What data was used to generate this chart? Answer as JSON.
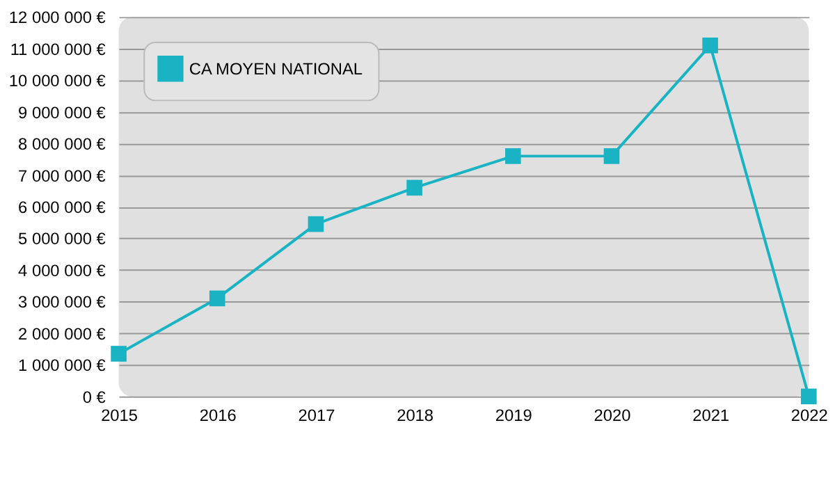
{
  "chart_data": {
    "type": "line",
    "categories": [
      "2015",
      "2016",
      "2017",
      "2018",
      "2019",
      "2020",
      "2021",
      "2022"
    ],
    "series": [
      {
        "name": "CA MOYEN NATIONAL",
        "color": "#1ab3c4",
        "values": [
          1350000,
          3100000,
          5450000,
          6600000,
          7600000,
          7600000,
          11100000,
          0
        ]
      }
    ],
    "ylim": [
      0,
      12000000
    ],
    "yticks": [
      {
        "value": 0,
        "label": "0 €"
      },
      {
        "value": 1000000,
        "label": "1 000 000 €"
      },
      {
        "value": 2000000,
        "label": "2 000 000 €"
      },
      {
        "value": 3000000,
        "label": "3 000 000 €"
      },
      {
        "value": 4000000,
        "label": "4 000 000 €"
      },
      {
        "value": 5000000,
        "label": "5 000 000 €"
      },
      {
        "value": 6000000,
        "label": "6 000 000 €"
      },
      {
        "value": 7000000,
        "label": "7 000 000 €"
      },
      {
        "value": 8000000,
        "label": "8 000 000 €"
      },
      {
        "value": 9000000,
        "label": "9 000 000 €"
      },
      {
        "value": 10000000,
        "label": "10 000 000 €"
      },
      {
        "value": 11000000,
        "label": "11 000 000 €"
      },
      {
        "value": 12000000,
        "label": "12 000 000 €"
      }
    ],
    "grid": "y",
    "legend": "top left",
    "marker": "square",
    "line_style": "solid"
  }
}
